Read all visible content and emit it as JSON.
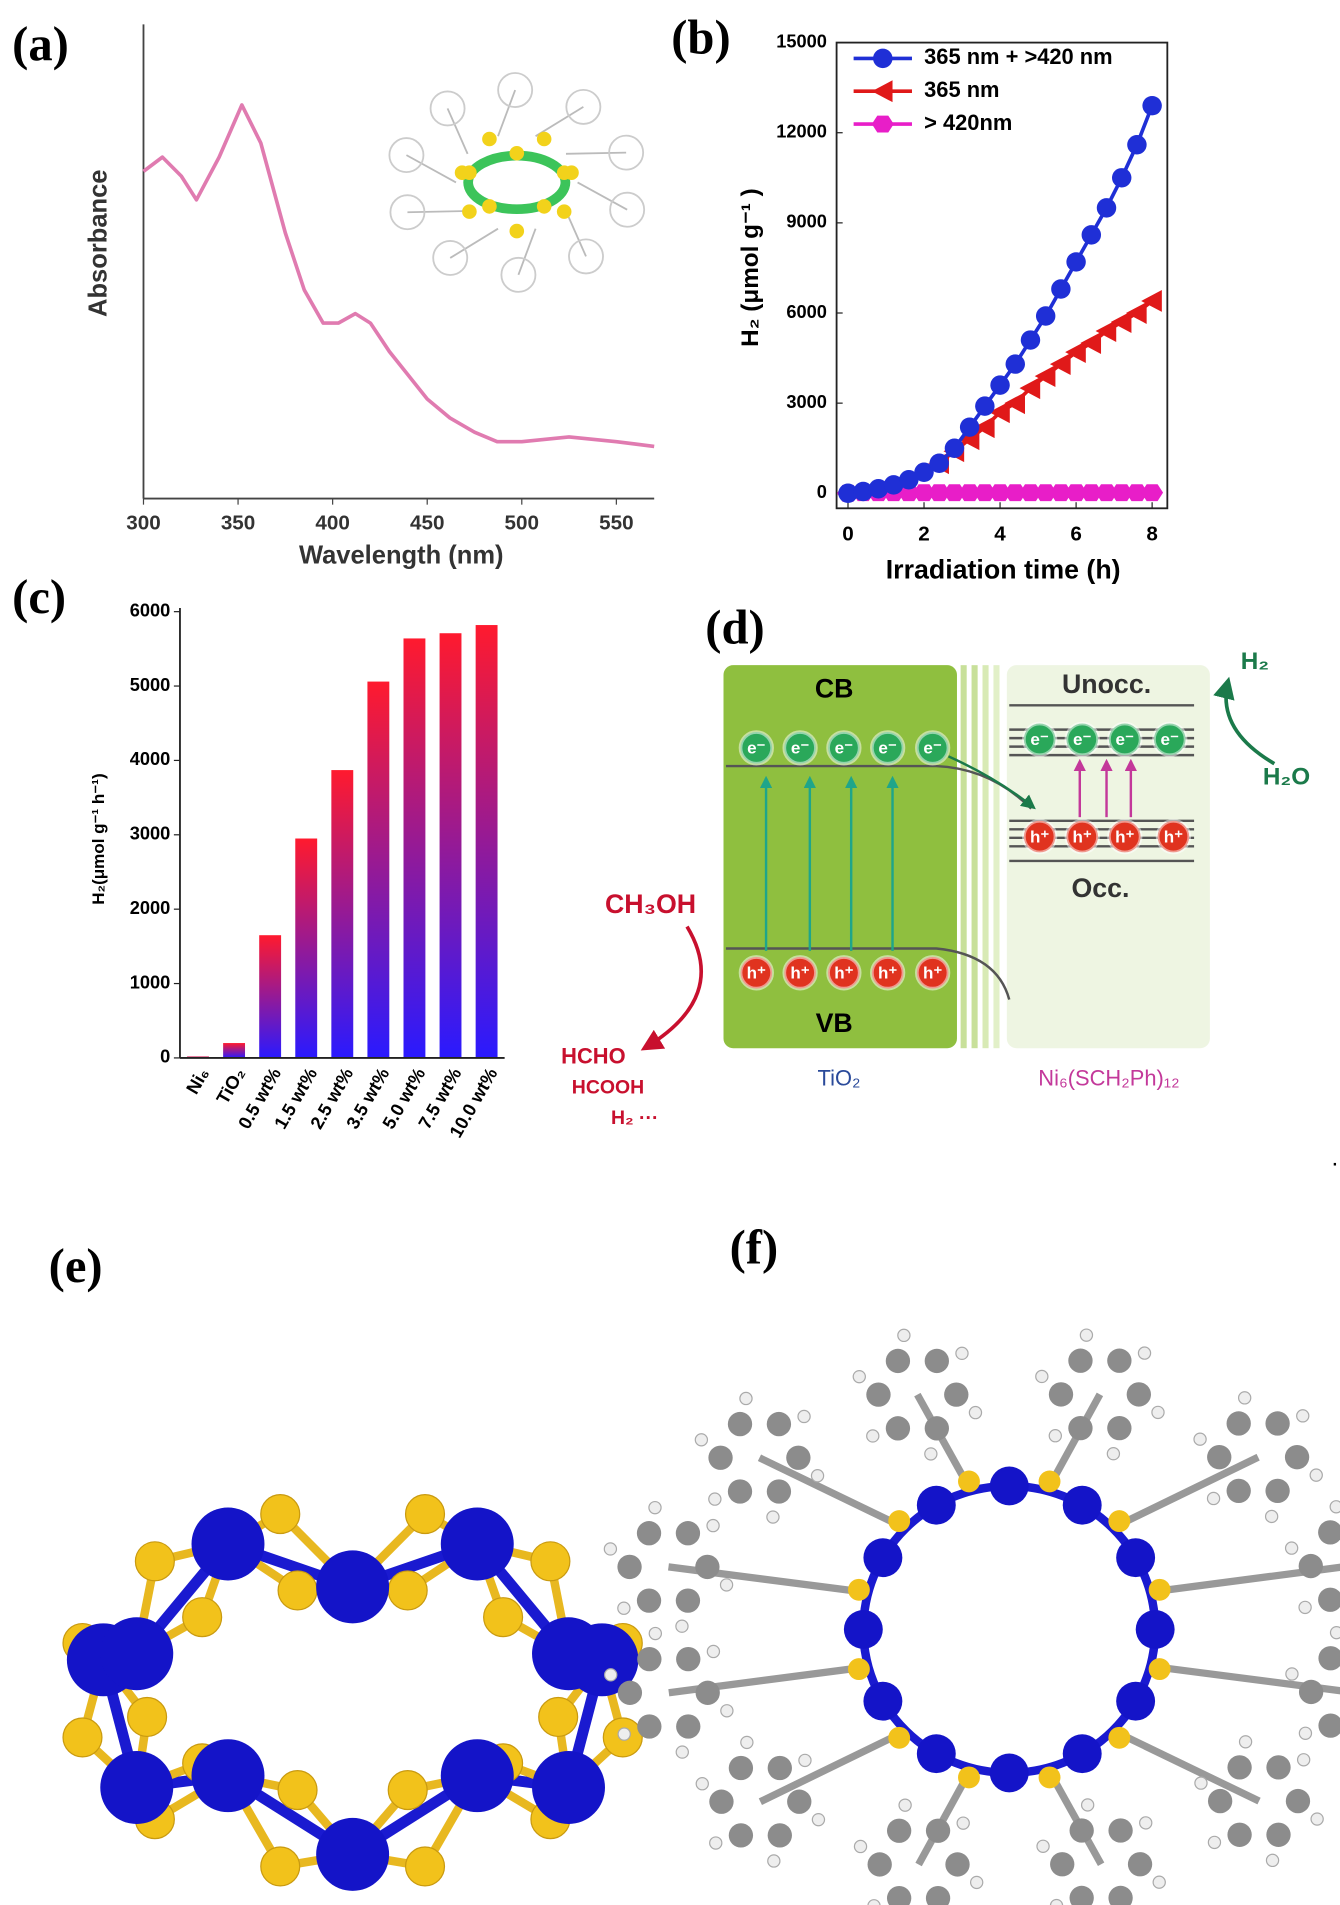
{
  "chart_data": [
    {
      "type": "line",
      "panel_label": "(a)",
      "x_label": "Wavelength (nm)",
      "y_label": "Absorbance",
      "x": [
        300,
        310,
        320,
        328,
        340,
        352,
        362,
        375,
        385,
        395,
        403,
        412,
        420,
        430,
        440,
        450,
        462,
        475,
        487,
        500,
        525,
        550,
        570
      ],
      "values": [
        0.69,
        0.72,
        0.68,
        0.63,
        0.72,
        0.83,
        0.75,
        0.56,
        0.44,
        0.37,
        0.37,
        0.39,
        0.37,
        0.31,
        0.26,
        0.21,
        0.17,
        0.14,
        0.12,
        0.12,
        0.13,
        0.12,
        0.11
      ],
      "color": "#e07bb0",
      "xlim": [
        300,
        570
      ],
      "ylim": [
        0,
        1
      ],
      "xticks": [
        300,
        350,
        400,
        450,
        500,
        550
      ]
    },
    {
      "type": "line",
      "panel_label": "(b)",
      "x_label": "Irradiation time (h)",
      "y_label": "H₂ (μmol g⁻¹ )",
      "x": [
        0,
        0.4,
        0.8,
        1.2,
        1.6,
        2,
        2.4,
        2.8,
        3.2,
        3.6,
        4,
        4.4,
        4.8,
        5.2,
        5.6,
        6,
        6.4,
        6.8,
        7.2,
        7.6,
        8
      ],
      "series": [
        {
          "name": "365 nm + >420 nm",
          "color": "#1f2fd6",
          "marker": "circle",
          "values": [
            0,
            60,
            150,
            280,
            450,
            700,
            1000,
            1500,
            2200,
            2900,
            3600,
            4300,
            5100,
            5900,
            6800,
            7700,
            8600,
            9500,
            10500,
            11600,
            12900
          ]
        },
        {
          "name": "365 nm",
          "color": "#e01919",
          "marker": "triangle-left",
          "values": [
            null,
            null,
            null,
            null,
            null,
            null,
            1000,
            1400,
            1800,
            2200,
            2700,
            3000,
            3500,
            3900,
            4300,
            4700,
            5000,
            5400,
            5700,
            6000,
            6400
          ]
        },
        {
          "name": "> 420nm",
          "color": "#e81ec8",
          "marker": "hexagon",
          "values": [
            0,
            20,
            20,
            20,
            20,
            20,
            20,
            20,
            20,
            20,
            20,
            20,
            20,
            20,
            20,
            20,
            20,
            20,
            20,
            20,
            20
          ]
        }
      ],
      "xlim": [
        -0.3,
        8.4
      ],
      "ylim": [
        -500,
        15000
      ],
      "xticks": [
        0,
        2,
        4,
        6,
        8
      ],
      "yticks": [
        0,
        3000,
        6000,
        9000,
        12000,
        15000
      ],
      "legend": "upper-left"
    },
    {
      "type": "bar",
      "panel_label": "(c)",
      "y_label": "H₂(μmol g⁻¹ h⁻¹)",
      "categories": [
        "Ni₆",
        "TiO₂",
        "0.5 wt%",
        "1.5 wt%",
        "2.5 wt%",
        "3.5 wt%",
        "5.0 wt%",
        "7.5 wt%",
        "10.0 wt%"
      ],
      "values": [
        20,
        200,
        1650,
        2950,
        3870,
        5060,
        5640,
        5710,
        5820
      ],
      "color": [
        "#ff1a2e",
        "#2a1aff"
      ],
      "ylim": [
        0,
        6000
      ],
      "yticks": [
        0,
        1000,
        2000,
        3000,
        4000,
        5000,
        6000
      ]
    }
  ],
  "diagram": {
    "panel_label": "(d)",
    "cb": "CB",
    "vb": "VB",
    "unocc": "Unocc.",
    "occ": "Occ.",
    "h2": "H₂",
    "h2o": "H₂O",
    "ch3oh": "CH₃OH",
    "hcho": "HCHO",
    "hcooh": "HCOOH",
    "h2_etc": "H₂ ···",
    "tio2": "TiO₂",
    "cluster": "Ni₆(SCH₂Ph)₁₂",
    "electron": "e⁻",
    "hole": "h⁺"
  },
  "structures": {
    "e_label": "(e)",
    "f_label": "(f)"
  },
  "stray_mark": "."
}
